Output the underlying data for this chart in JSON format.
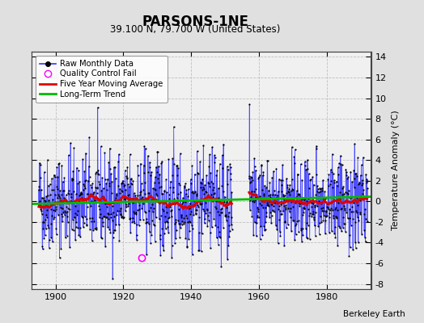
{
  "title": "PARSONS-1NE",
  "subtitle": "39.100 N, 79.700 W (United States)",
  "ylabel": "Temperature Anomaly (°C)",
  "xlim": [
    1893,
    1993
  ],
  "ylim": [
    -8.5,
    14.5
  ],
  "yticks": [
    -8,
    -6,
    -4,
    -2,
    0,
    2,
    4,
    6,
    8,
    10,
    12,
    14
  ],
  "xticks": [
    1900,
    1920,
    1940,
    1960,
    1980
  ],
  "fig_bg_color": "#e0e0e0",
  "plot_bg_color": "#f0f0f0",
  "grid_color": "#c0c0c0",
  "seed": 42,
  "data_start1": 1895,
  "data_end1": 1952,
  "data_start2": 1957,
  "data_end2": 1992,
  "qc_fail_x": 1925.5,
  "qc_fail_y": -5.5,
  "moving_avg_color": "#dd0000",
  "trend_color": "#00bb00",
  "raw_line_color": "#3333ff",
  "raw_dot_color": "#000000",
  "qc_color": "#ff00ff",
  "trend_slope": 0.007,
  "trend_intercept": -13.5
}
